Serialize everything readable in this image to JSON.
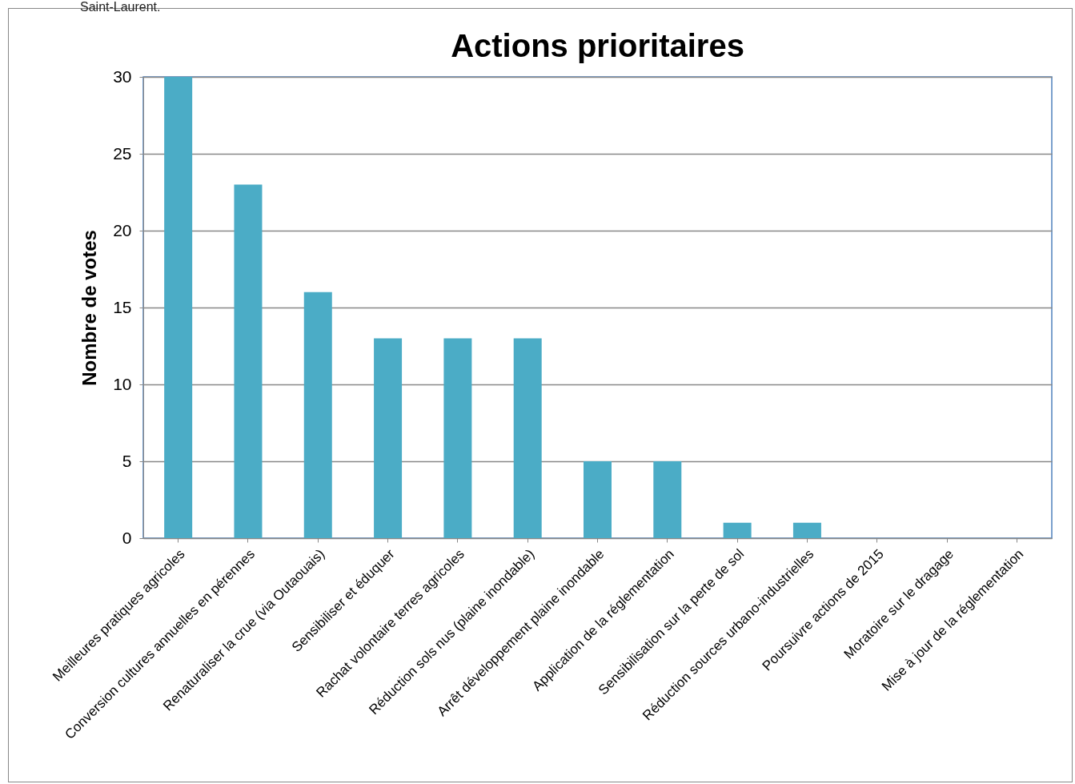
{
  "chart_data": {
    "type": "bar",
    "title": "Actions prioritaires",
    "ylabel": "Nombre de votes",
    "categories": [
      "Meilleures pratiques agricoles",
      "Conversion cultures annuelles en pérennes",
      "Renaturaliser la crue (via Outaouais)",
      "Sensibiliser et éduquer",
      "Rachat volontaire terres agricoles",
      "Réduction sols nus (plaine inondable)",
      "Arrêt développement plaine inondable",
      "Application de la réglementation",
      "Sensibilisation sur la perte de sol",
      "Réduction sources urbano-industrielles",
      "Poursuivre actions de 2015",
      "Moratoire sur le dragage",
      "Mise à jour de la réglementation"
    ],
    "values": [
      30,
      23,
      16,
      13,
      13,
      13,
      5,
      5,
      1,
      1,
      0,
      0,
      0
    ],
    "color": "#4bacc6",
    "ylim": [
      0,
      30
    ],
    "yticks": [
      0,
      5,
      10,
      15,
      20,
      25,
      30
    ],
    "grid": "y",
    "annotations": [
      "Saint-Laurent."
    ]
  }
}
